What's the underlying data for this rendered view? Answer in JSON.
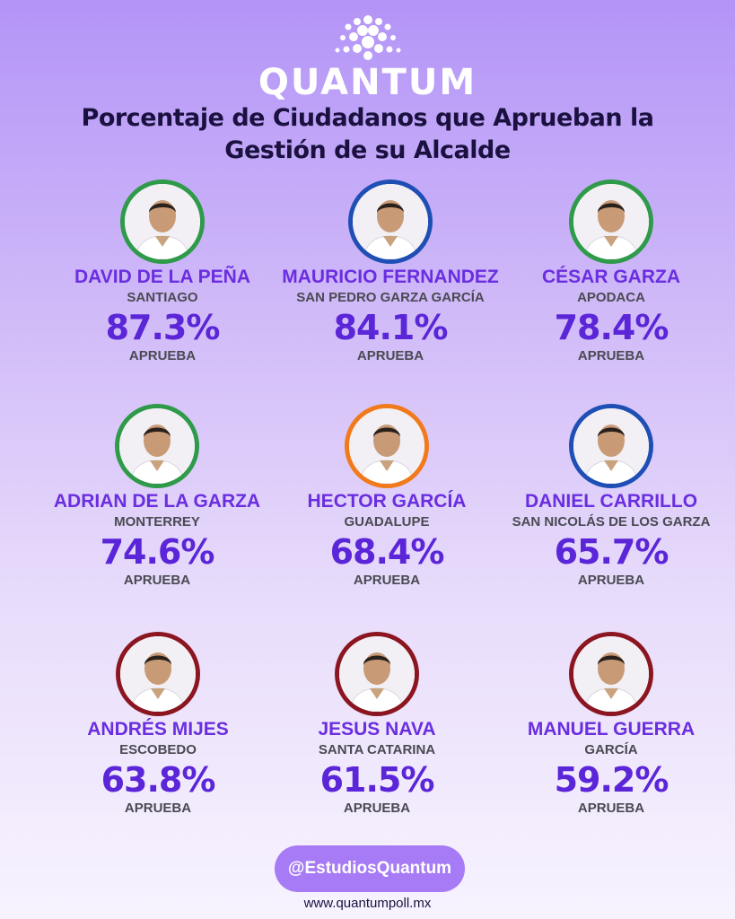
{
  "brand": {
    "name": "QUANTUM"
  },
  "title": {
    "line1": "Porcentaje de Ciudadanos que Aprueban la",
    "line2": "Gestión de su Alcalde"
  },
  "ring_colors": {
    "green": "#2e9a4a",
    "blue": "#1f4fb5",
    "orange": "#f07a1c",
    "maroon": "#8b1520"
  },
  "cards": [
    {
      "name": "DAVID DE LA PEÑA",
      "city": "SANTIAGO",
      "pct": "87.3%",
      "label": "APRUEBA",
      "ring": "#2e9a4a"
    },
    {
      "name": "MAURICIO FERNANDEZ",
      "city": "SAN PEDRO GARZA GARCÍA",
      "pct": "84.1%",
      "label": "APRUEBA",
      "ring": "#1f4fb5"
    },
    {
      "name": "CÉSAR GARZA",
      "city": "APODACA",
      "pct": "78.4%",
      "label": "APRUEBA",
      "ring": "#2e9a4a"
    },
    {
      "name": "ADRIAN DE LA GARZA",
      "city": "MONTERREY",
      "pct": "74.6%",
      "label": "APRUEBA",
      "ring": "#2e9a4a"
    },
    {
      "name": "HECTOR GARCÍA",
      "city": "GUADALUPE",
      "pct": "68.4%",
      "label": "APRUEBA",
      "ring": "#f07a1c"
    },
    {
      "name": "DANIEL CARRILLO",
      "city": "SAN NICOLÁS DE LOS GARZA",
      "pct": "65.7%",
      "label": "APRUEBA",
      "ring": "#1f4fb5"
    },
    {
      "name": "ANDRÉS MIJES",
      "city": "ESCOBEDO",
      "pct": "63.8%",
      "label": "APRUEBA",
      "ring": "#8b1520"
    },
    {
      "name": "JESUS NAVA",
      "city": "SANTA CATARINA",
      "pct": "61.5%",
      "label": "APRUEBA",
      "ring": "#8b1520"
    },
    {
      "name": "MANUEL GUERRA",
      "city": "GARCÍA",
      "pct": "59.2%",
      "label": "APRUEBA",
      "ring": "#8b1520"
    }
  ],
  "footer": {
    "handle": "@EstudiosQuantum",
    "url": "www.quantumpoll.mx"
  }
}
